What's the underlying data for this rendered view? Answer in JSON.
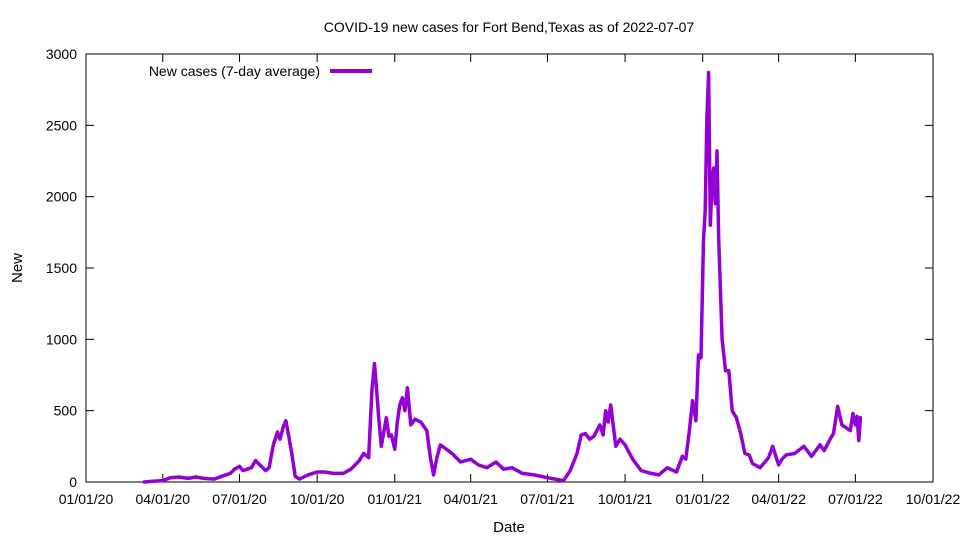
{
  "chart_data": {
    "type": "line",
    "title": "COVID-19 new cases for Fort Bend,Texas as of 2022-07-07",
    "xlabel": "Date",
    "ylabel": "New",
    "xlim": [
      "2020-01-01",
      "2022-10-01"
    ],
    "ylim": [
      0,
      3000
    ],
    "grid": false,
    "legend_position": "top-left",
    "x_ticks": [
      "2020-01-01",
      "2020-04-01",
      "2020-07-01",
      "2020-10-01",
      "2021-01-01",
      "2021-04-01",
      "2021-07-01",
      "2021-10-01",
      "2022-01-01",
      "2022-04-01",
      "2022-07-01",
      "2022-10-01"
    ],
    "x_tick_labels": [
      "01/01/20",
      "04/01/20",
      "07/01/20",
      "10/01/20",
      "01/01/21",
      "04/01/21",
      "07/01/21",
      "10/01/21",
      "01/01/22",
      "04/01/22",
      "07/01/22",
      "10/01/22"
    ],
    "y_ticks": [
      0,
      500,
      1000,
      1500,
      2000,
      2500,
      3000
    ],
    "y_tick_labels": [
      "0",
      "500",
      "1000",
      "1500",
      "2000",
      "2500",
      "3000"
    ],
    "series": [
      {
        "name": "New cases (7-day average)",
        "color": "#9400d3",
        "x": [
          "2020-03-10",
          "2020-03-20",
          "2020-04-01",
          "2020-04-10",
          "2020-04-20",
          "2020-05-01",
          "2020-05-10",
          "2020-05-20",
          "2020-06-01",
          "2020-06-10",
          "2020-06-20",
          "2020-06-25",
          "2020-07-01",
          "2020-07-05",
          "2020-07-10",
          "2020-07-15",
          "2020-07-20",
          "2020-07-25",
          "2020-08-01",
          "2020-08-05",
          "2020-08-10",
          "2020-08-15",
          "2020-08-18",
          "2020-08-22",
          "2020-08-25",
          "2020-08-28",
          "2020-09-01",
          "2020-09-05",
          "2020-09-10",
          "2020-09-20",
          "2020-10-01",
          "2020-10-10",
          "2020-10-20",
          "2020-11-01",
          "2020-11-10",
          "2020-11-20",
          "2020-11-25",
          "2020-12-01",
          "2020-12-05",
          "2020-12-08",
          "2020-12-11",
          "2020-12-13",
          "2020-12-16",
          "2020-12-19",
          "2020-12-22",
          "2020-12-25",
          "2020-12-28",
          "2021-01-01",
          "2021-01-04",
          "2021-01-07",
          "2021-01-10",
          "2021-01-13",
          "2021-01-16",
          "2021-01-20",
          "2021-01-25",
          "2021-02-01",
          "2021-02-08",
          "2021-02-12",
          "2021-02-16",
          "2021-02-20",
          "2021-02-24",
          "2021-03-01",
          "2021-03-10",
          "2021-03-20",
          "2021-04-01",
          "2021-04-10",
          "2021-04-20",
          "2021-05-01",
          "2021-05-10",
          "2021-05-20",
          "2021-06-01",
          "2021-06-15",
          "2021-07-01",
          "2021-07-10",
          "2021-07-20",
          "2021-07-28",
          "2021-08-05",
          "2021-08-10",
          "2021-08-15",
          "2021-08-20",
          "2021-08-25",
          "2021-09-01",
          "2021-09-05",
          "2021-09-08",
          "2021-09-11",
          "2021-09-14",
          "2021-09-20",
          "2021-09-25",
          "2021-10-01",
          "2021-10-10",
          "2021-10-20",
          "2021-11-01",
          "2021-11-10",
          "2021-11-20",
          "2021-12-01",
          "2021-12-08",
          "2021-12-12",
          "2021-12-16",
          "2021-12-20",
          "2021-12-24",
          "2021-12-27",
          "2021-12-30",
          "2022-01-02",
          "2022-01-04",
          "2022-01-06",
          "2022-01-08",
          "2022-01-10",
          "2022-01-12",
          "2022-01-14",
          "2022-01-16",
          "2022-01-18",
          "2022-01-20",
          "2022-01-24",
          "2022-01-28",
          "2022-02-01",
          "2022-02-05",
          "2022-02-10",
          "2022-02-15",
          "2022-02-20",
          "2022-02-25",
          "2022-03-01",
          "2022-03-10",
          "2022-03-20",
          "2022-03-25",
          "2022-04-01",
          "2022-04-05",
          "2022-04-10",
          "2022-04-20",
          "2022-05-01",
          "2022-05-10",
          "2022-05-20",
          "2022-05-25",
          "2022-06-01",
          "2022-06-05",
          "2022-06-10",
          "2022-06-15",
          "2022-06-20",
          "2022-06-25",
          "2022-06-28",
          "2022-07-01",
          "2022-07-03",
          "2022-07-05",
          "2022-07-07"
        ],
        "y": [
          0,
          5,
          10,
          30,
          35,
          25,
          35,
          25,
          20,
          40,
          60,
          90,
          110,
          80,
          90,
          100,
          150,
          120,
          80,
          100,
          260,
          350,
          300,
          390,
          430,
          330,
          200,
          40,
          20,
          50,
          70,
          70,
          60,
          60,
          90,
          150,
          200,
          170,
          650,
          830,
          600,
          450,
          250,
          350,
          450,
          320,
          330,
          230,
          420,
          540,
          590,
          500,
          660,
          400,
          440,
          420,
          360,
          180,
          50,
          170,
          260,
          240,
          200,
          140,
          160,
          120,
          100,
          140,
          90,
          100,
          60,
          50,
          30,
          20,
          10,
          80,
          200,
          330,
          340,
          300,
          320,
          400,
          330,
          500,
          420,
          540,
          250,
          300,
          260,
          160,
          80,
          60,
          50,
          100,
          70,
          180,
          160,
          350,
          570,
          430,
          890,
          870,
          1700,
          1900,
          2550,
          2870,
          1800,
          2100,
          2200,
          1950,
          2320,
          1700,
          1000,
          780,
          780,
          500,
          450,
          340,
          200,
          190,
          130,
          100,
          170,
          250,
          120,
          160,
          190,
          200,
          250,
          180,
          260,
          220,
          300,
          340,
          530,
          400,
          380,
          360,
          480,
          400,
          460,
          290,
          450
        ]
      }
    ]
  }
}
